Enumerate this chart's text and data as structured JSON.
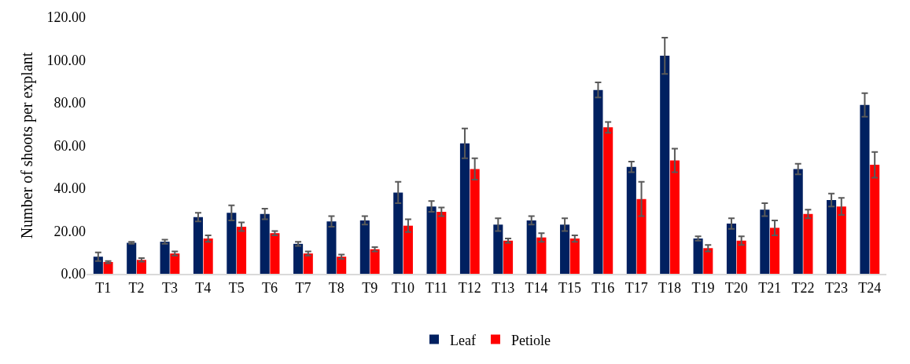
{
  "chart_data": {
    "type": "bar",
    "ylabel": "Number of shoots per explant",
    "categories": [
      "T1",
      "T2",
      "T3",
      "T4",
      "T5",
      "T6",
      "T7",
      "T8",
      "T9",
      "T10",
      "T11",
      "T12",
      "T13",
      "T14",
      "T15",
      "T16",
      "T17",
      "T18",
      "T19",
      "T20",
      "T21",
      "T22",
      "T23",
      "T24"
    ],
    "series": [
      {
        "name": "Leaf",
        "color": "#002060",
        "values": [
          8,
          14.5,
          15,
          26.5,
          28.5,
          28,
          14,
          24.5,
          25,
          38,
          31.5,
          61,
          23,
          25,
          23,
          86,
          50,
          102,
          16.5,
          23.5,
          30,
          49,
          34.5,
          79
        ],
        "errors": [
          2,
          0.5,
          1,
          2,
          3.5,
          2.5,
          1,
          2.5,
          2,
          5,
          2.5,
          7,
          3,
          2,
          3,
          3.5,
          2.5,
          8.5,
          1,
          2.5,
          3,
          2.5,
          3,
          5.5
        ]
      },
      {
        "name": "Petiole",
        "color": "#ff0000",
        "values": [
          5.5,
          6.5,
          9.5,
          16.5,
          22,
          19,
          9.5,
          8,
          11.5,
          22.5,
          29,
          49,
          15.5,
          17,
          16.5,
          68.5,
          35,
          53,
          12,
          15.5,
          21.5,
          28,
          31.5,
          51
        ],
        "errors": [
          0.5,
          0.8,
          1,
          1.5,
          2,
          1,
          1,
          1,
          1,
          3,
          2,
          5,
          1,
          2,
          1.5,
          2.5,
          8,
          5.5,
          1.5,
          2,
          3.5,
          2,
          4,
          6
        ]
      }
    ],
    "ylim": [
      0,
      120
    ],
    "yticks": [
      {
        "value": 0,
        "label": "0.00"
      },
      {
        "value": 20,
        "label": "20.00"
      },
      {
        "value": 40,
        "label": "40.00"
      },
      {
        "value": 60,
        "label": "60.00"
      },
      {
        "value": 80,
        "label": "80.00"
      },
      {
        "value": 100,
        "label": "100.00"
      },
      {
        "value": 120,
        "label": "120.00"
      }
    ],
    "grid": false,
    "legend": "bottom"
  }
}
